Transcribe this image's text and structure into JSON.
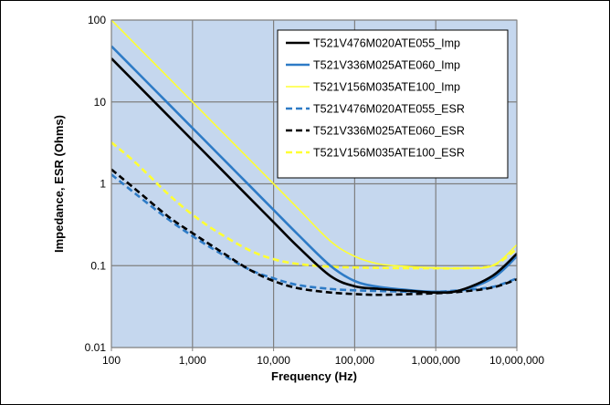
{
  "chart_data": {
    "type": "line",
    "xscale": "log",
    "yscale": "log",
    "xlim": [
      100,
      10000000
    ],
    "ylim": [
      0.01,
      100
    ],
    "xlabel": "Frequency (Hz)",
    "ylabel": "Impedance, ESR (Ohms)",
    "x_tick_labels": [
      "100",
      "1,000",
      "10,000",
      "100,000",
      "1,000,000",
      "10,000,000"
    ],
    "y_tick_labels": [
      "0.01",
      "0.1",
      "1",
      "10",
      "100"
    ],
    "grid": true,
    "legend_position": "top-right",
    "plot_background": "#c5d7ee",
    "grid_color": "#7f7f7f",
    "series": [
      {
        "name": "T521V476M020ATE055_Imp",
        "color": "#000000",
        "dash": "solid",
        "width": 2.6,
        "x": [
          100,
          200,
          500,
          1000,
          2000,
          5000,
          10000,
          20000,
          50000,
          100000,
          200000,
          500000,
          1000000,
          2000000,
          5000000,
          10000000
        ],
        "y": [
          34,
          17,
          6.8,
          3.4,
          1.7,
          0.68,
          0.34,
          0.17,
          0.075,
          0.056,
          0.052,
          0.049,
          0.047,
          0.05,
          0.075,
          0.14
        ]
      },
      {
        "name": "T521V336M025ATE060_Imp",
        "color": "#2e7bc6",
        "dash": "solid",
        "width": 2.6,
        "x": [
          100,
          200,
          500,
          1000,
          2000,
          5000,
          10000,
          20000,
          50000,
          100000,
          200000,
          500000,
          1000000,
          2000000,
          5000000,
          10000000
        ],
        "y": [
          48,
          24,
          9.6,
          4.8,
          2.4,
          0.96,
          0.48,
          0.24,
          0.1,
          0.065,
          0.055,
          0.05,
          0.048,
          0.05,
          0.07,
          0.13
        ]
      },
      {
        "name": "T521V156M035ATE100_Imp",
        "color": "#ffff33",
        "dash": "solid",
        "width": 1.6,
        "x": [
          100,
          200,
          500,
          1000,
          2000,
          5000,
          10000,
          20000,
          50000,
          100000,
          200000,
          500000,
          1000000,
          2000000,
          5000000,
          10000000
        ],
        "y": [
          100,
          50,
          20,
          10,
          5,
          2,
          1.0,
          0.5,
          0.2,
          0.13,
          0.105,
          0.097,
          0.094,
          0.093,
          0.1,
          0.18
        ]
      },
      {
        "name": "T521V476M020ATE055_ESR",
        "color": "#2e7bc6",
        "dash": "dashed",
        "width": 2.6,
        "x": [
          100,
          200,
          500,
          1000,
          2000,
          5000,
          10000,
          20000,
          50000,
          100000,
          200000,
          500000,
          1000000,
          2000000,
          5000000,
          10000000
        ],
        "y": [
          1.3,
          0.75,
          0.37,
          0.23,
          0.15,
          0.09,
          0.07,
          0.058,
          0.052,
          0.05,
          0.049,
          0.048,
          0.048,
          0.05,
          0.055,
          0.07
        ]
      },
      {
        "name": "T521V336M025ATE060_ESR",
        "color": "#000000",
        "dash": "dashed",
        "width": 2.6,
        "x": [
          100,
          200,
          500,
          1000,
          2000,
          5000,
          10000,
          20000,
          50000,
          100000,
          200000,
          500000,
          1000000,
          2000000,
          5000000,
          10000000
        ],
        "y": [
          1.5,
          0.85,
          0.4,
          0.25,
          0.16,
          0.09,
          0.065,
          0.053,
          0.047,
          0.045,
          0.044,
          0.045,
          0.046,
          0.048,
          0.054,
          0.068
        ]
      },
      {
        "name": "T521V156M035ATE100_ESR",
        "color": "#ffff33",
        "dash": "dashed",
        "width": 2.6,
        "x": [
          100,
          200,
          500,
          1000,
          2000,
          5000,
          10000,
          20000,
          50000,
          100000,
          200000,
          500000,
          1000000,
          2000000,
          5000000,
          10000000
        ],
        "y": [
          3.2,
          1.8,
          0.75,
          0.42,
          0.26,
          0.155,
          0.12,
          0.105,
          0.097,
          0.095,
          0.094,
          0.093,
          0.093,
          0.093,
          0.1,
          0.16
        ]
      }
    ]
  }
}
